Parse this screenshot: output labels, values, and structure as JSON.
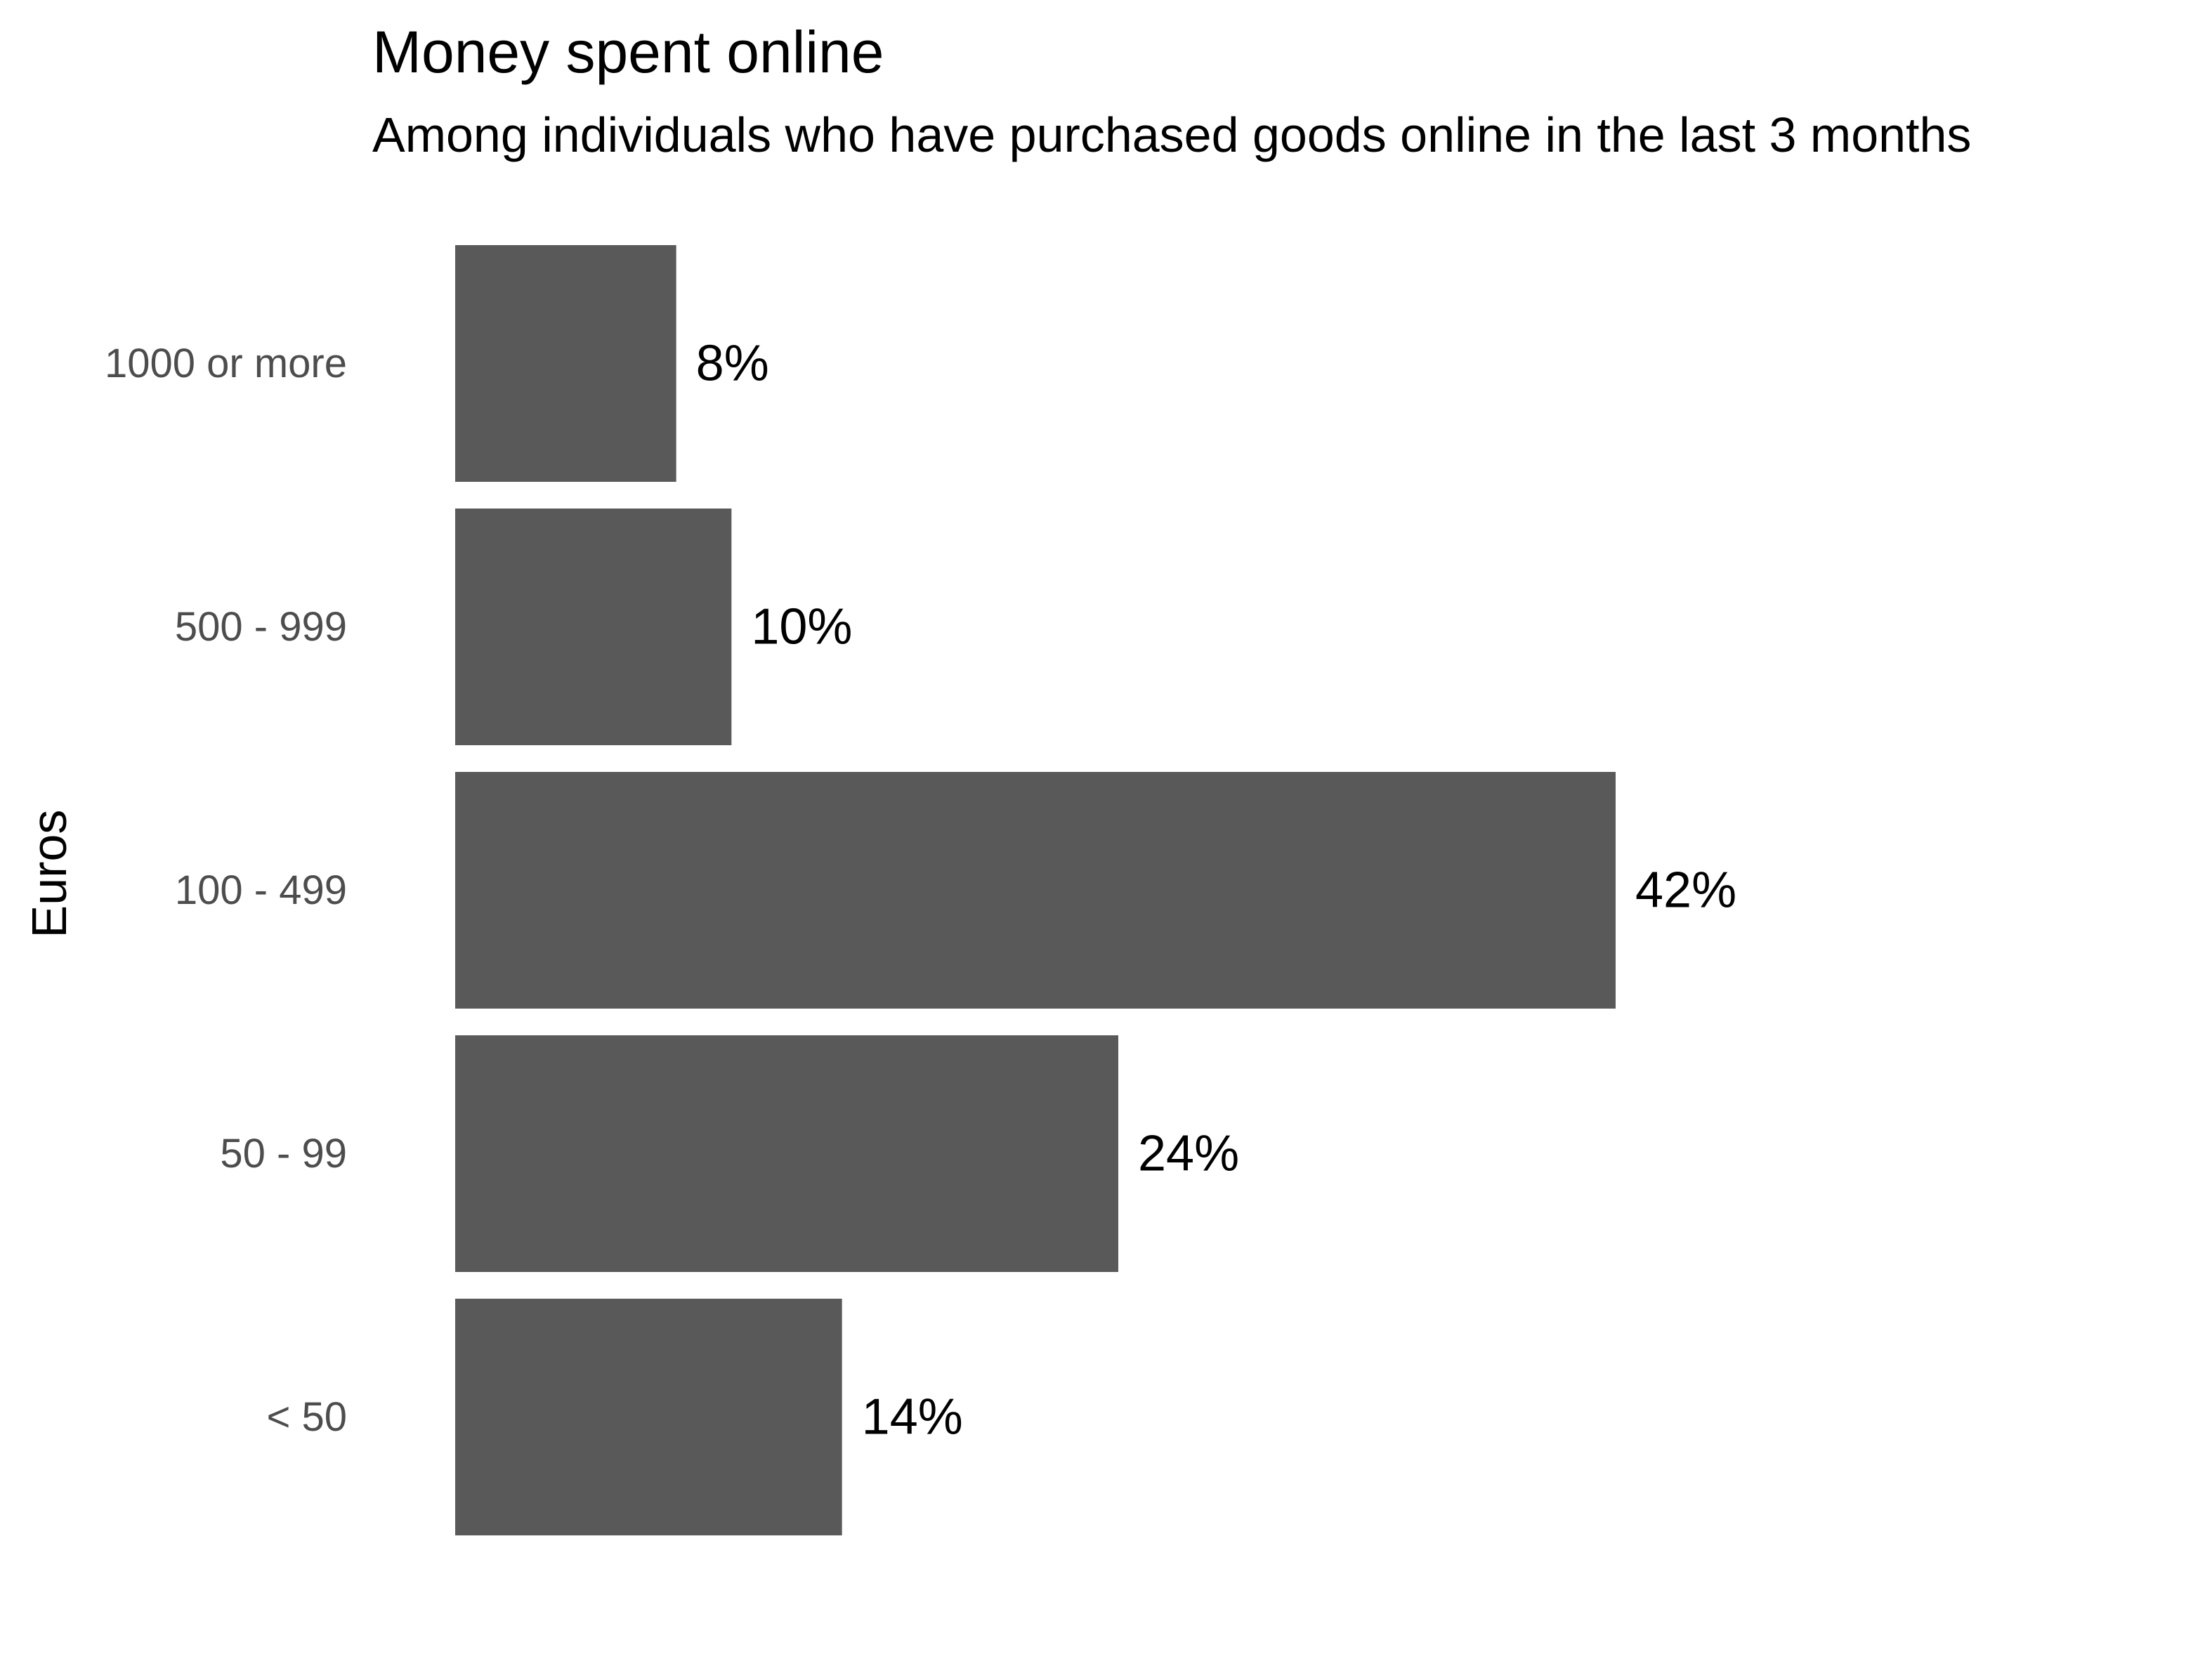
{
  "chart_data": {
    "type": "bar",
    "orientation": "horizontal",
    "title": "Money spent online",
    "subtitle": "Among individuals who have purchased goods online in the last 3 months",
    "ylabel": "Euros",
    "xlabel": "",
    "categories": [
      "1000 or more",
      "500 - 999",
      "100 - 499",
      "50 - 99",
      "< 50"
    ],
    "values": [
      8,
      10,
      42,
      24,
      14
    ],
    "data_labels": [
      "8%",
      "10%",
      "42%",
      "24%",
      "14%"
    ],
    "unit": "%",
    "xlim": [
      0,
      42
    ],
    "grid": false,
    "legend": "none",
    "bar_color": "#595959",
    "tick_label_color": "#4d4d4d",
    "label_color": "#000000"
  }
}
